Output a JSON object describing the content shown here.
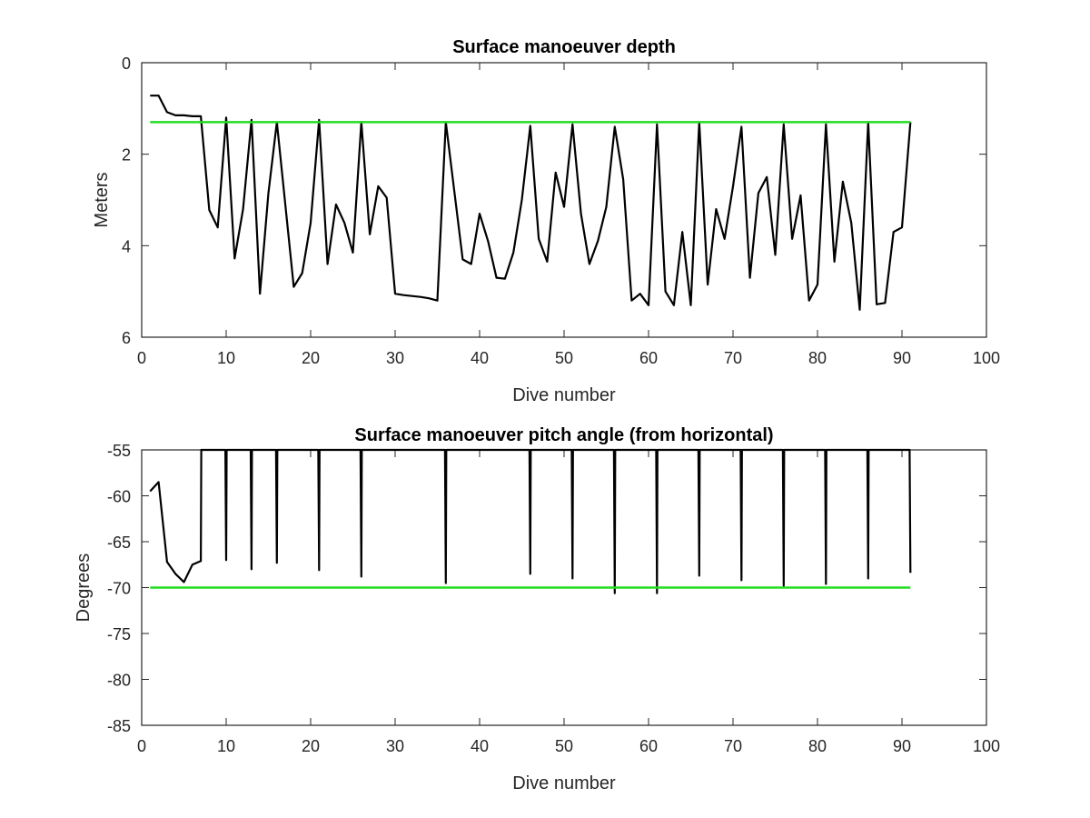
{
  "colors": {
    "data_line": "#000000",
    "reference_line": "#22dd22",
    "grid": "#dcdcdc",
    "background": "#ffffff"
  },
  "chart_data": [
    {
      "type": "line",
      "title": "Surface manoeuver depth",
      "xlabel": "Dive number",
      "ylabel": "Meters",
      "xlim": [
        0,
        100
      ],
      "ylim": [
        0,
        6
      ],
      "y_reversed": true,
      "grid": true,
      "xticks": [
        0,
        10,
        20,
        30,
        40,
        50,
        60,
        70,
        80,
        90,
        100
      ],
      "yticks": [
        0,
        2,
        4,
        6
      ],
      "series": [
        {
          "x": [
            1,
            2,
            3,
            4,
            5,
            6,
            7,
            8,
            9,
            10,
            11,
            12,
            13,
            14,
            15,
            16,
            17,
            18,
            19,
            20,
            21,
            22,
            23,
            24,
            25,
            26,
            27,
            28,
            29,
            30,
            31,
            32,
            33,
            34,
            35,
            36,
            37,
            38,
            39,
            40,
            41,
            42,
            43,
            44,
            45,
            46,
            47,
            48,
            49,
            50,
            51,
            52,
            53,
            54,
            55,
            56,
            57,
            58,
            59,
            60,
            61,
            62,
            63,
            64,
            65,
            66,
            67,
            68,
            69,
            70,
            71,
            72,
            73,
            74,
            75,
            76,
            77,
            78,
            79,
            80,
            81,
            82,
            83,
            84,
            85,
            86,
            87,
            88,
            89,
            90,
            91
          ],
          "values": [
            0.72,
            0.72,
            1.08,
            1.15,
            1.15,
            1.17,
            1.17,
            3.22,
            3.6,
            1.2,
            4.28,
            3.2,
            1.25,
            5.05,
            2.85,
            1.3,
            3.1,
            4.9,
            4.6,
            3.5,
            1.25,
            4.4,
            3.1,
            3.5,
            4.15,
            1.3,
            3.75,
            2.7,
            2.95,
            5.05,
            5.08,
            5.1,
            5.12,
            5.15,
            5.2,
            1.3,
            2.8,
            4.3,
            4.4,
            3.3,
            3.9,
            4.7,
            4.72,
            4.15,
            3.0,
            1.38,
            3.85,
            4.35,
            2.4,
            3.15,
            1.35,
            3.3,
            4.4,
            3.9,
            3.15,
            1.4,
            2.55,
            5.2,
            5.05,
            5.3,
            1.35,
            5.0,
            5.3,
            3.7,
            5.3,
            1.3,
            4.85,
            3.2,
            3.85,
            2.7,
            1.4,
            4.7,
            2.85,
            2.5,
            4.2,
            1.35,
            3.85,
            2.9,
            5.2,
            4.85,
            1.35,
            4.35,
            2.6,
            3.5,
            5.4,
            1.3,
            5.28,
            5.25,
            3.7,
            3.6,
            1.3
          ]
        },
        {
          "x": [
            1,
            91
          ],
          "values": [
            1.3,
            1.3
          ]
        }
      ]
    },
    {
      "type": "line",
      "title": "Surface manoeuver pitch angle (from horizontal)",
      "xlabel": "Dive number",
      "ylabel": "Degrees",
      "xlim": [
        0,
        100
      ],
      "ylim": [
        -85,
        -55
      ],
      "grid": true,
      "xticks": [
        0,
        10,
        20,
        30,
        40,
        50,
        60,
        70,
        80,
        90,
        100
      ],
      "yticks": [
        -55,
        -60,
        -65,
        -70,
        -75,
        -80,
        -85
      ],
      "series": [
        {
          "x": [
            1,
            2,
            3,
            4,
            5,
            6,
            7,
            7.05,
            9.9,
            10,
            10.05,
            10.1,
            12.9,
            13,
            13.05,
            13.1,
            15.9,
            16,
            16.05,
            16.1,
            20.9,
            21,
            21.05,
            21.1,
            25.9,
            26,
            26.05,
            26.1,
            35.9,
            36,
            36.05,
            36.1,
            45.9,
            46,
            46.05,
            46.1,
            50.9,
            51,
            51.05,
            51.1,
            55.9,
            56,
            56.05,
            56.1,
            60.9,
            61,
            61.05,
            61.1,
            65.9,
            66,
            66.05,
            66.1,
            70.9,
            71,
            71.05,
            71.1,
            75.9,
            76,
            76.05,
            76.1,
            80.9,
            81,
            81.05,
            81.1,
            85.9,
            86,
            86.05,
            86.1,
            90.9,
            91
          ],
          "values": [
            -59.5,
            -58.5,
            -67.2,
            -68.5,
            -69.4,
            -67.5,
            -67.1,
            -55,
            -55,
            -67.0,
            -55,
            -55,
            -55,
            -68.0,
            -55,
            -55,
            -55,
            -67.3,
            -55,
            -55,
            -55,
            -68.1,
            -55,
            -55,
            -55,
            -68.8,
            -55,
            -55,
            -55,
            -69.5,
            -55,
            -55,
            -55,
            -68.5,
            -55,
            -55,
            -55,
            -69.0,
            -55,
            -55,
            -55,
            -70.6,
            -55,
            -55,
            -55,
            -70.6,
            -55,
            -55,
            -55,
            -68.7,
            -55,
            -55,
            -55,
            -69.2,
            -55,
            -55,
            -55,
            -69.8,
            -55,
            -55,
            -55,
            -69.6,
            -55,
            -55,
            -55,
            -69.0,
            -55,
            -55,
            -55,
            -68.4
          ]
        },
        {
          "x": [
            1,
            91
          ],
          "values": [
            -70,
            -70
          ]
        }
      ]
    }
  ]
}
